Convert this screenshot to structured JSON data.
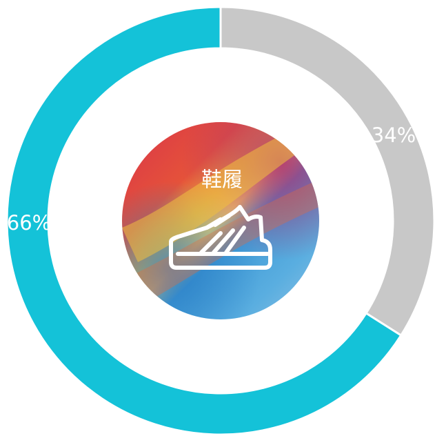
{
  "chart_data": {
    "type": "donut",
    "values": [
      34,
      66
    ],
    "value_labels": [
      "34%",
      "66%"
    ],
    "colors": [
      "#c8c8c8",
      "#14c2d8"
    ],
    "center_label": "鞋履"
  }
}
